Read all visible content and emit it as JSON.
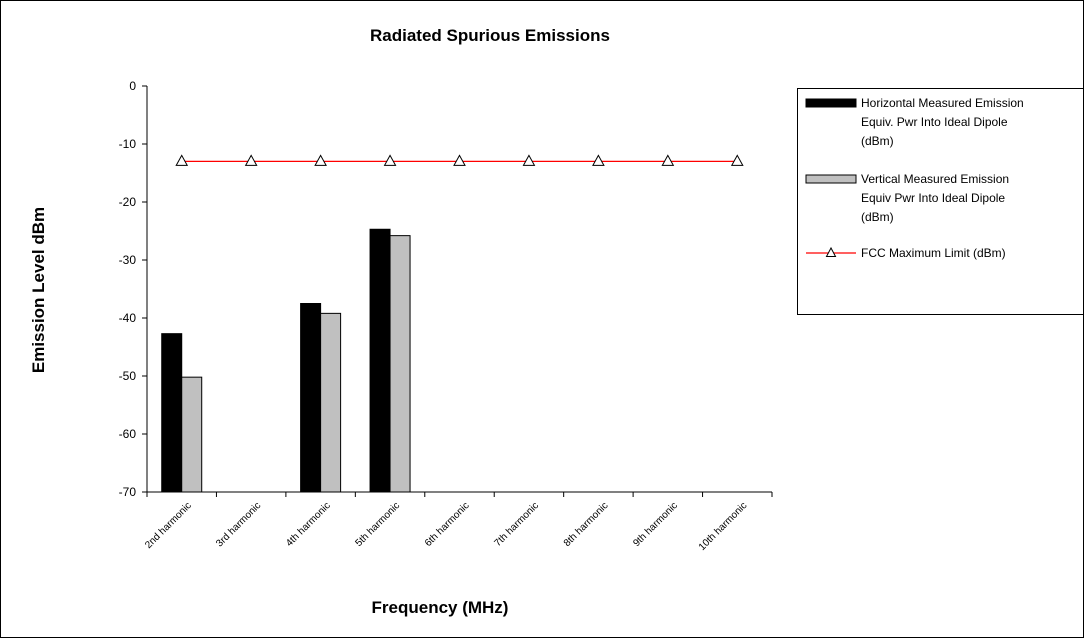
{
  "chart_data": {
    "type": "bar",
    "title": "Radiated Spurious Emissions",
    "xlabel": "Frequency (MHz)",
    "ylabel": "Emission Level dBm",
    "ylim": [
      -70,
      0
    ],
    "yticks": [
      0,
      -10,
      -20,
      -30,
      -40,
      -50,
      -60,
      -70
    ],
    "categories": [
      "2nd harmonic",
      "3rd harmonic",
      "4th harmonic",
      "5th harmonic",
      "6th harmonic",
      "7th harmonic",
      "8th harmonic",
      "9th harmonic",
      "10th harmonic"
    ],
    "series": [
      {
        "name": "Horizontal Measured Emission Equiv. Pwr Into Ideal Dipole (dBm)",
        "type": "bar",
        "color": "#000000",
        "values": [
          -42.7,
          null,
          -37.5,
          -24.7,
          null,
          null,
          null,
          null,
          null
        ]
      },
      {
        "name": "Vertical Measured Emission Equiv Pwr Into Ideal Dipole (dBm)",
        "type": "bar",
        "color": "#c0c0c0",
        "values": [
          -50.2,
          null,
          -39.2,
          -25.8,
          null,
          null,
          null,
          null,
          null
        ]
      },
      {
        "name": "FCC Maximum Limit (dBm)",
        "type": "line",
        "color": "#ff0000",
        "marker": "triangle",
        "values": [
          -13,
          -13,
          -13,
          -13,
          -13,
          -13,
          -13,
          -13,
          -13
        ]
      }
    ],
    "legend_position": "right",
    "grid": false
  }
}
